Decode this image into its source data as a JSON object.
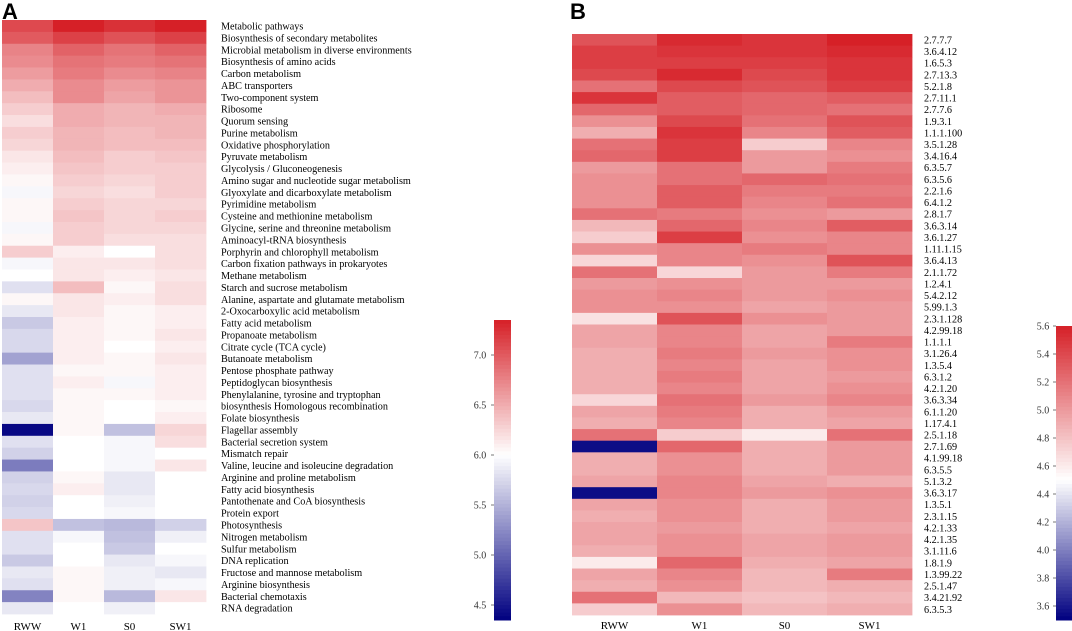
{
  "figure": {
    "panel_a_label": "A",
    "panel_b_label": "B"
  },
  "chart_data": [
    {
      "type": "heatmap",
      "panel": "A",
      "columns": [
        "RWW",
        "W1",
        "S0",
        "SW1"
      ],
      "rows": [
        "Metabolic pathways",
        "Biosynthesis of secondary metabolites",
        "Microbial metabolism in diverse environments",
        "Biosynthesis of amino acids",
        "Carbon metabolism",
        "ABC transporters",
        "Two-component system",
        "Ribosome",
        "Quorum sensing",
        "Purine metabolism",
        "Oxidative phosphorylation",
        "Pyruvate metabolism",
        "Glycolysis / Gluconeogenesis",
        "Amino sugar and nucleotide sugar metabolism",
        "Glyoxylate and dicarboxylate metabolism",
        "Pyrimidine metabolism",
        "Cysteine and methionine metabolism",
        "Glycine, serine and threonine metabolism",
        "Aminoacyl-tRNA biosynthesis",
        "Porphyrin and chlorophyll metabolism",
        "Carbon fixation pathways in prokaryotes",
        "Methane metabolism",
        "Starch and sucrose metabolism",
        "Alanine, aspartate and glutamate metabolism",
        "2-Oxocarboxylic acid metabolism",
        "Fatty acid metabolism",
        "Propanoate metabolism",
        "Citrate cycle (TCA cycle)",
        "Butanoate metabolism",
        "Pentose phosphate pathway",
        "Peptidoglycan biosynthesis",
        "Phenylalanine, tyrosine and tryptophan",
        "biosynthesis Homologous recombination",
        "Folate biosynthesis",
        "Flagellar assembly",
        "Bacterial secretion system",
        "Mismatch repair",
        "Valine, leucine and isoleucine degradation",
        "Arginine and proline metabolism",
        "Fatty acid biosynthesis",
        "Pantothenate and CoA biosynthesis",
        "Protein export",
        "Photosynthesis",
        "Nitrogen metabolism",
        "Sulfur metabolism",
        "DNA replication",
        "Fructose and mannose metabolism",
        "Arginine biosynthesis",
        "Bacterial chemotaxis",
        "RNA degradation"
      ],
      "values": [
        [
          7.1,
          7.35,
          7.25,
          7.35
        ],
        [
          7.0,
          7.15,
          7.05,
          7.15
        ],
        [
          6.75,
          6.95,
          6.85,
          6.95
        ],
        [
          6.7,
          6.85,
          6.8,
          6.85
        ],
        [
          6.6,
          6.8,
          6.7,
          6.75
        ],
        [
          6.5,
          6.7,
          6.6,
          6.65
        ],
        [
          6.4,
          6.7,
          6.55,
          6.65
        ],
        [
          6.3,
          6.5,
          6.45,
          6.5
        ],
        [
          6.2,
          6.5,
          6.45,
          6.45
        ],
        [
          6.3,
          6.45,
          6.4,
          6.45
        ],
        [
          6.25,
          6.45,
          6.4,
          6.4
        ],
        [
          6.15,
          6.4,
          6.3,
          6.35
        ],
        [
          6.1,
          6.35,
          6.3,
          6.3
        ],
        [
          6.05,
          6.3,
          6.25,
          6.3
        ],
        [
          5.95,
          6.25,
          6.2,
          6.3
        ],
        [
          6.05,
          6.3,
          6.25,
          6.25
        ],
        [
          6.05,
          6.35,
          6.25,
          6.3
        ],
        [
          5.95,
          6.3,
          6.25,
          6.25
        ],
        [
          6.05,
          6.3,
          6.2,
          6.2
        ],
        [
          6.3,
          6.1,
          6.0,
          6.2
        ],
        [
          5.95,
          6.15,
          6.15,
          6.2
        ],
        [
          6.0,
          6.15,
          6.1,
          6.15
        ],
        [
          5.8,
          6.4,
          6.05,
          6.2
        ],
        [
          6.05,
          6.15,
          6.1,
          6.2
        ],
        [
          5.85,
          6.15,
          6.05,
          6.1
        ],
        [
          5.65,
          6.1,
          6.05,
          6.1
        ],
        [
          5.75,
          6.1,
          6.05,
          6.15
        ],
        [
          5.75,
          6.1,
          6.0,
          6.1
        ],
        [
          5.4,
          6.1,
          6.05,
          6.15
        ],
        [
          5.8,
          6.05,
          6.05,
          6.1
        ],
        [
          5.8,
          6.1,
          5.95,
          6.1
        ],
        [
          5.8,
          6.05,
          6.05,
          6.1
        ],
        [
          5.75,
          6.05,
          6.0,
          6.05
        ],
        [
          5.85,
          6.05,
          6.0,
          6.1
        ],
        [
          4.4,
          6.05,
          5.6,
          6.25
        ],
        [
          5.8,
          6.0,
          5.95,
          6.2
        ],
        [
          5.7,
          6.0,
          5.95,
          6.0
        ],
        [
          5.15,
          6.0,
          5.95,
          6.15
        ],
        [
          5.7,
          6.05,
          5.85,
          6.0
        ],
        [
          5.75,
          6.1,
          5.85,
          6.0
        ],
        [
          5.7,
          6.0,
          5.9,
          6.0
        ],
        [
          5.75,
          6.0,
          5.95,
          6.0
        ],
        [
          6.35,
          5.6,
          5.55,
          5.7
        ],
        [
          5.8,
          5.95,
          5.6,
          5.9
        ],
        [
          5.8,
          6.0,
          5.65,
          6.0
        ],
        [
          5.65,
          6.0,
          5.85,
          5.95
        ],
        [
          5.85,
          6.05,
          5.9,
          5.85
        ],
        [
          5.8,
          6.05,
          5.9,
          5.95
        ],
        [
          5.2,
          6.05,
          5.55,
          6.15
        ],
        [
          5.85,
          6.0,
          5.9,
          6.0
        ]
      ],
      "colorbar": {
        "min": 4.35,
        "max": 7.35,
        "mid": 6.0,
        "ticks": [
          4.5,
          5.0,
          5.5,
          6.0,
          6.5,
          7.0
        ],
        "tick_labels": [
          "4.5",
          "5.0",
          "5.5",
          "6.0",
          "6.5",
          "7.0"
        ]
      }
    },
    {
      "type": "heatmap",
      "panel": "B",
      "columns": [
        "RWW",
        "W1",
        "S0",
        "SW1"
      ],
      "rows": [
        "2.7.7.7",
        "3.6.4.12",
        "1.6.5.3",
        "2.7.13.3",
        "5.2.1.8",
        "2.7.11.1",
        "2.7.7.6",
        "1.9.3.1",
        "1.1.1.100",
        "3.5.1.28",
        "3.4.16.4",
        "6.3.5.7",
        "6.3.5.6",
        "2.2.1.6",
        "6.4.1.2",
        "2.8.1.7",
        "3.6.3.14",
        "3.6.1.27",
        "1.11.1.15",
        "3.6.4.13",
        "2.1.1.72",
        "1.2.4.1",
        "5.4.2.12",
        "5.99.1.3",
        "2.3.1.128",
        "4.2.99.18",
        "1.1.1.1",
        "3.1.26.4",
        "1.3.5.4",
        "6.3.1.2",
        "4.2.1.20",
        "3.6.3.34",
        "6.1.1.20",
        "1.17.4.1",
        "2.5.1.18",
        "2.7.1.69",
        "4.1.99.18",
        "6.3.5.5",
        "5.1.3.2",
        "3.6.3.17",
        "1.3.5.1",
        "2.3.1.15",
        "4.2.1.33",
        "4.2.1.35",
        "3.1.11.6",
        "1.8.1.9",
        "1.3.99.22",
        "2.5.1.47",
        "3.4.21.92",
        "6.3.5.3"
      ],
      "values": [
        [
          5.35,
          5.55,
          5.5,
          5.6
        ],
        [
          5.45,
          5.5,
          5.5,
          5.55
        ],
        [
          5.45,
          5.45,
          5.45,
          5.5
        ],
        [
          5.4,
          5.55,
          5.4,
          5.5
        ],
        [
          5.2,
          5.4,
          5.35,
          5.45
        ],
        [
          5.5,
          5.3,
          5.25,
          5.3
        ],
        [
          5.25,
          5.3,
          5.25,
          5.2
        ],
        [
          5.05,
          5.4,
          5.2,
          5.35
        ],
        [
          4.9,
          5.5,
          5.1,
          5.3
        ],
        [
          5.2,
          5.45,
          4.75,
          5.1
        ],
        [
          5.25,
          5.45,
          5.0,
          5.05
        ],
        [
          5.0,
          5.2,
          5.0,
          5.15
        ],
        [
          5.05,
          5.2,
          5.25,
          5.2
        ],
        [
          5.05,
          5.3,
          5.15,
          5.15
        ],
        [
          5.05,
          5.3,
          5.1,
          5.2
        ],
        [
          5.2,
          5.15,
          5.05,
          5.0
        ],
        [
          4.85,
          5.25,
          5.1,
          5.3
        ],
        [
          4.75,
          5.45,
          5.05,
          5.1
        ],
        [
          5.05,
          5.1,
          5.15,
          5.1
        ],
        [
          4.7,
          5.1,
          5.05,
          5.35
        ],
        [
          5.2,
          4.7,
          5.0,
          5.15
        ],
        [
          5.0,
          5.05,
          5.0,
          5.0
        ],
        [
          5.05,
          5.1,
          5.0,
          5.05
        ],
        [
          5.05,
          5.05,
          4.95,
          5.0
        ],
        [
          4.65,
          5.35,
          5.05,
          5.0
        ],
        [
          4.95,
          5.1,
          4.95,
          5.0
        ],
        [
          4.95,
          5.1,
          4.95,
          5.15
        ],
        [
          4.9,
          5.15,
          5.0,
          5.05
        ],
        [
          4.9,
          5.1,
          4.95,
          5.05
        ],
        [
          4.9,
          5.15,
          4.95,
          5.0
        ],
        [
          4.9,
          5.1,
          4.95,
          5.05
        ],
        [
          4.7,
          5.2,
          5.0,
          5.1
        ],
        [
          4.95,
          5.15,
          4.9,
          5.0
        ],
        [
          4.9,
          5.1,
          4.9,
          4.95
        ],
        [
          5.2,
          4.75,
          4.6,
          5.2
        ],
        [
          3.55,
          5.25,
          4.9,
          5.0
        ],
        [
          4.9,
          5.05,
          4.9,
          5.0
        ],
        [
          4.9,
          5.05,
          4.9,
          5.0
        ],
        [
          4.95,
          5.1,
          4.95,
          4.9
        ],
        [
          3.55,
          5.1,
          5.0,
          5.05
        ],
        [
          4.95,
          5.05,
          4.9,
          5.0
        ],
        [
          4.9,
          5.05,
          4.9,
          5.0
        ],
        [
          4.95,
          5.0,
          4.9,
          4.95
        ],
        [
          4.95,
          5.05,
          4.95,
          5.0
        ],
        [
          4.9,
          5.05,
          4.95,
          5.0
        ],
        [
          4.6,
          5.25,
          4.9,
          4.95
        ],
        [
          4.95,
          5.1,
          4.85,
          5.15
        ],
        [
          4.9,
          5.05,
          4.85,
          4.9
        ],
        [
          5.2,
          4.85,
          4.8,
          4.85
        ],
        [
          4.75,
          5.05,
          4.85,
          4.9
        ]
      ],
      "colorbar": {
        "min": 3.5,
        "max": 5.6,
        "mid": 4.5,
        "ticks": [
          3.6,
          3.8,
          4.0,
          4.2,
          4.4,
          4.6,
          4.8,
          5.0,
          5.2,
          5.4,
          5.6
        ],
        "tick_labels": [
          "3.6",
          "3.8",
          "4.0",
          "4.2",
          "4.4",
          "4.6",
          "4.8",
          "5.0",
          "5.2",
          "5.4",
          "5.6"
        ]
      }
    }
  ]
}
